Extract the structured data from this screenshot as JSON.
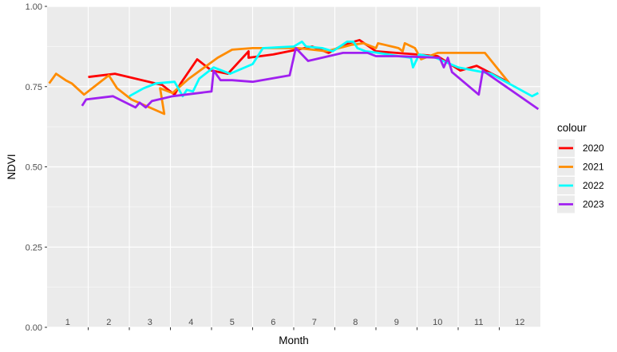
{
  "chart_data": {
    "type": "line",
    "xlabel": "Month",
    "ylabel": "NDVI",
    "xlim": [
      0.5,
      12.5
    ],
    "ylim": [
      0,
      1
    ],
    "y_ticks": [
      "0.00",
      "0.25",
      "0.50",
      "0.75",
      "1.00"
    ],
    "y_tick_values": [
      0,
      0.25,
      0.5,
      0.75,
      1.0
    ],
    "month_labels": [
      "1",
      "2",
      "3",
      "4",
      "5",
      "6",
      "7",
      "8",
      "9",
      "10",
      "11",
      "12"
    ],
    "grid": true,
    "legend": {
      "title": "colour",
      "placement": "right"
    },
    "series": [
      {
        "name": "2020",
        "color": "#ff0000",
        "points": [
          [
            1.5,
            0.78
          ],
          [
            2.15,
            0.79
          ],
          [
            3.3,
            0.755
          ],
          [
            3.45,
            0.74
          ],
          [
            3.6,
            0.725
          ],
          [
            3.75,
            0.76
          ],
          [
            4.15,
            0.835
          ],
          [
            4.5,
            0.8
          ],
          [
            4.9,
            0.79
          ],
          [
            5.4,
            0.86
          ],
          [
            5.4,
            0.84
          ],
          [
            6.0,
            0.85
          ],
          [
            6.95,
            0.875
          ],
          [
            7.35,
            0.855
          ],
          [
            7.7,
            0.88
          ],
          [
            8.1,
            0.895
          ],
          [
            8.5,
            0.86
          ],
          [
            9.5,
            0.85
          ],
          [
            10.0,
            0.845
          ],
          [
            10.55,
            0.8
          ],
          [
            10.95,
            0.815
          ],
          [
            11.7,
            0.765
          ]
        ]
      },
      {
        "name": "2021",
        "color": "#ff8c00",
        "points": [
          [
            0.55,
            0.76
          ],
          [
            0.72,
            0.79
          ],
          [
            0.95,
            0.77
          ],
          [
            1.1,
            0.76
          ],
          [
            1.4,
            0.725
          ],
          [
            2.0,
            0.785
          ],
          [
            2.2,
            0.745
          ],
          [
            2.55,
            0.71
          ],
          [
            3.35,
            0.665
          ],
          [
            3.25,
            0.745
          ],
          [
            3.55,
            0.73
          ],
          [
            3.95,
            0.775
          ],
          [
            4.65,
            0.84
          ],
          [
            5.0,
            0.865
          ],
          [
            5.5,
            0.87
          ],
          [
            6.0,
            0.87
          ],
          [
            6.6,
            0.87
          ],
          [
            7.3,
            0.86
          ],
          [
            7.9,
            0.88
          ],
          [
            8.2,
            0.885
          ],
          [
            8.5,
            0.87
          ],
          [
            8.55,
            0.885
          ],
          [
            9.05,
            0.87
          ],
          [
            9.15,
            0.86
          ],
          [
            9.2,
            0.885
          ],
          [
            9.45,
            0.87
          ],
          [
            9.6,
            0.835
          ],
          [
            10.0,
            0.855
          ],
          [
            10.5,
            0.855
          ],
          [
            11.15,
            0.855
          ],
          [
            11.75,
            0.76
          ]
        ]
      },
      {
        "name": "2022",
        "color": "#00ffff",
        "points": [
          [
            2.5,
            0.72
          ],
          [
            2.85,
            0.745
          ],
          [
            3.15,
            0.76
          ],
          [
            3.6,
            0.765
          ],
          [
            3.8,
            0.72
          ],
          [
            3.9,
            0.74
          ],
          [
            4.05,
            0.735
          ],
          [
            4.2,
            0.775
          ],
          [
            4.55,
            0.81
          ],
          [
            4.95,
            0.79
          ],
          [
            5.5,
            0.82
          ],
          [
            5.75,
            0.87
          ],
          [
            6.5,
            0.875
          ],
          [
            6.7,
            0.89
          ],
          [
            6.8,
            0.875
          ],
          [
            7.2,
            0.87
          ],
          [
            7.45,
            0.86
          ],
          [
            7.8,
            0.89
          ],
          [
            7.95,
            0.89
          ],
          [
            8.05,
            0.87
          ],
          [
            8.25,
            0.86
          ],
          [
            8.55,
            0.855
          ],
          [
            9.05,
            0.845
          ],
          [
            9.35,
            0.84
          ],
          [
            9.4,
            0.81
          ],
          [
            9.55,
            0.85
          ],
          [
            9.95,
            0.84
          ],
          [
            10.5,
            0.81
          ],
          [
            11.3,
            0.79
          ],
          [
            12.3,
            0.72
          ],
          [
            12.45,
            0.73
          ]
        ]
      },
      {
        "name": "2023",
        "color": "#a020f0",
        "points": [
          [
            1.35,
            0.69
          ],
          [
            1.45,
            0.71
          ],
          [
            2.1,
            0.72
          ],
          [
            2.65,
            0.685
          ],
          [
            2.75,
            0.7
          ],
          [
            2.9,
            0.685
          ],
          [
            3.05,
            0.705
          ],
          [
            3.55,
            0.72
          ],
          [
            4.5,
            0.735
          ],
          [
            4.55,
            0.8
          ],
          [
            4.72,
            0.77
          ],
          [
            5.0,
            0.77
          ],
          [
            5.5,
            0.765
          ],
          [
            6.4,
            0.785
          ],
          [
            6.55,
            0.87
          ],
          [
            6.85,
            0.83
          ],
          [
            7.7,
            0.855
          ],
          [
            8.3,
            0.855
          ],
          [
            8.5,
            0.845
          ],
          [
            8.7,
            0.845
          ],
          [
            9.0,
            0.845
          ],
          [
            10.05,
            0.84
          ],
          [
            10.15,
            0.81
          ],
          [
            10.25,
            0.84
          ],
          [
            10.35,
            0.795
          ],
          [
            11.0,
            0.725
          ],
          [
            11.1,
            0.8
          ],
          [
            12.45,
            0.68
          ]
        ]
      }
    ]
  }
}
